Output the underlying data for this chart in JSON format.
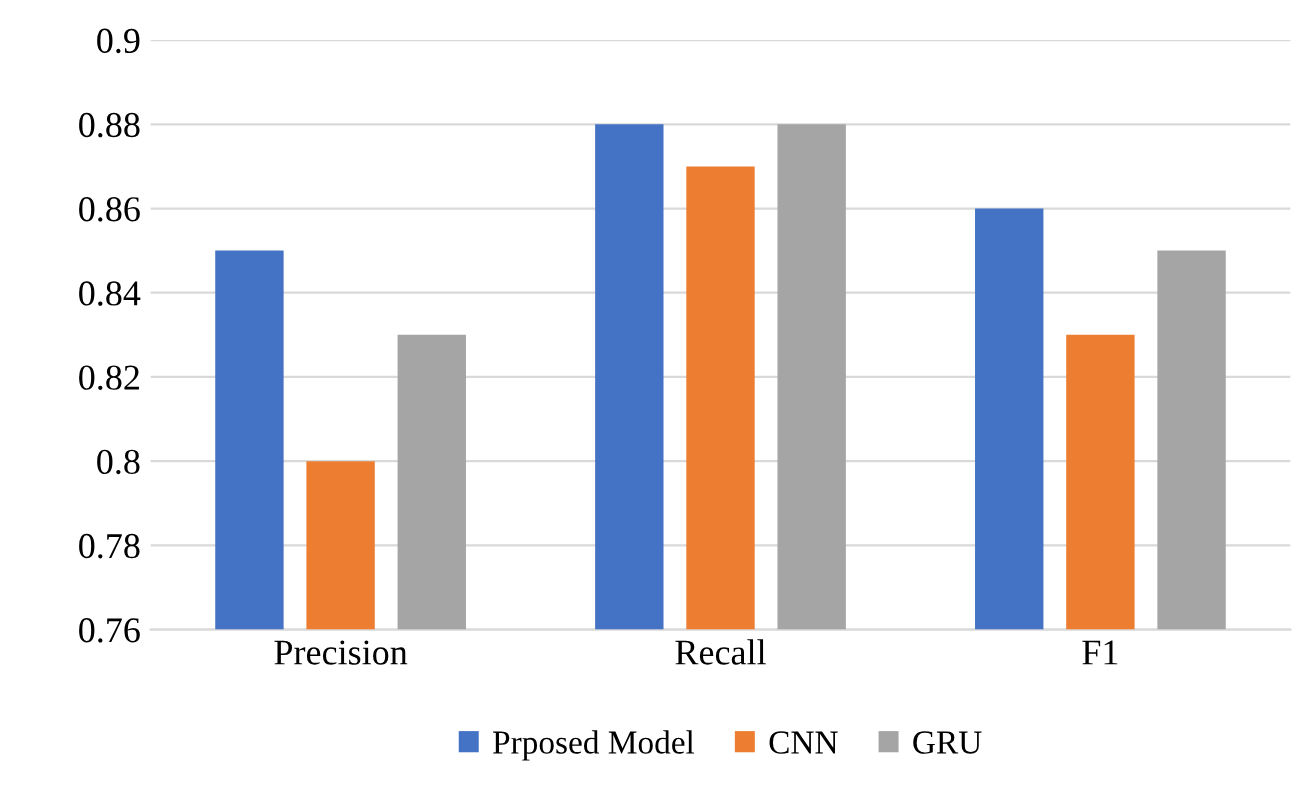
{
  "chart_data": {
    "type": "bar",
    "categories": [
      "Precision",
      "Recall",
      "F1"
    ],
    "series": [
      {
        "name": "Prposed Model",
        "color": "#4472c4",
        "values": [
          0.85,
          0.88,
          0.86
        ]
      },
      {
        "name": "CNN",
        "color": "#ed7d31",
        "values": [
          0.8,
          0.87,
          0.83
        ]
      },
      {
        "name": "GRU",
        "color": "#a5a5a5",
        "values": [
          0.83,
          0.88,
          0.85
        ]
      }
    ],
    "ylim": [
      0.76,
      0.9
    ],
    "yticks": [
      0.76,
      0.78,
      0.8,
      0.82,
      0.84,
      0.86,
      0.88,
      0.9
    ],
    "grid": "y",
    "legend": "bottom"
  }
}
